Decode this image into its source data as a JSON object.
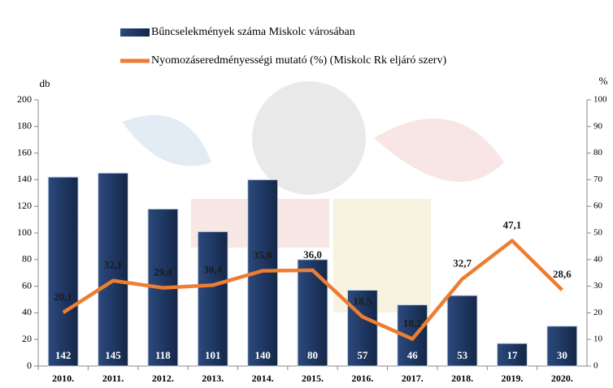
{
  "chart_data": {
    "type": "bar-line",
    "categories": [
      "2010.",
      "2011.",
      "2012.",
      "2013.",
      "2014.",
      "2015.",
      "2016.",
      "2017.",
      "2018.",
      "2019.",
      "2020."
    ],
    "y_label": "db",
    "y2_label": "%",
    "ylim": [
      0,
      200
    ],
    "yticks": [
      0,
      20,
      40,
      60,
      80,
      100,
      120,
      140,
      160,
      180,
      200
    ],
    "y2lim": [
      0,
      100
    ],
    "y2ticks": [
      0,
      10,
      20,
      30,
      40,
      50,
      60,
      70,
      80,
      90,
      100
    ],
    "series": [
      {
        "name": "Bűncselekmények száma Miskolc városában",
        "type": "bar",
        "color": "#1f3864",
        "values": [
          142,
          145,
          118,
          101,
          140,
          80,
          57,
          46,
          53,
          17,
          30
        ]
      },
      {
        "name": "Nyomozáseredményességi mutató (%) (Miskolc Rk eljáró szerv)",
        "type": "line",
        "axis": "y2",
        "color": "#ed7d31",
        "values": [
          20.1,
          32.1,
          29.4,
          30.4,
          35.8,
          36.0,
          18.5,
          10.2,
          32.7,
          47.1,
          28.6
        ],
        "value_labels": [
          "20,1",
          "32,1",
          "29,4",
          "30,4",
          "35,8",
          "36,0",
          "18,5",
          "10,2",
          "32,7",
          "47,1",
          "28,6"
        ]
      }
    ]
  }
}
